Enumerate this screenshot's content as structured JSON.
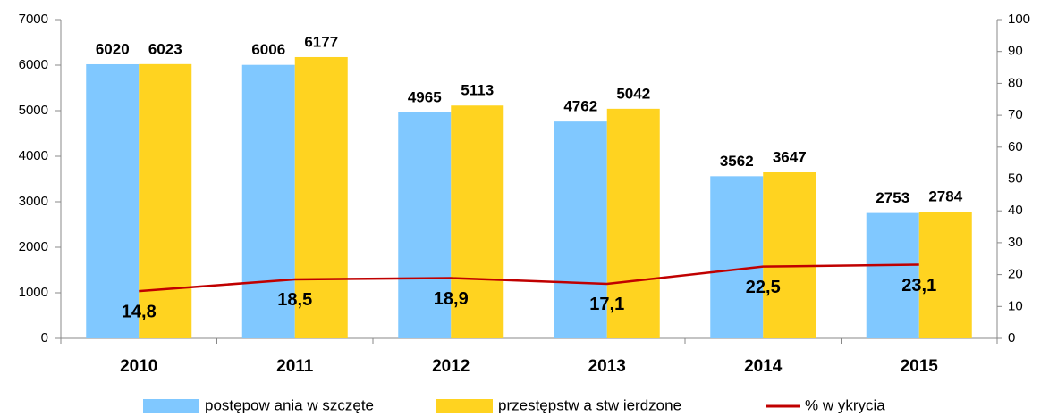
{
  "chart_data": {
    "type": "bar",
    "categories": [
      "2010",
      "2011",
      "2012",
      "2013",
      "2014",
      "2015"
    ],
    "series": [
      {
        "name": "postępow ania w szczęte",
        "color": "#80c8ff",
        "values": [
          6020,
          6006,
          4965,
          4762,
          3562,
          2753
        ]
      },
      {
        "name": "przestępstw a stw ierdzone",
        "color": "#ffd320",
        "values": [
          6023,
          6177,
          5113,
          5042,
          3647,
          2784
        ]
      },
      {
        "name": "% w ykrycia",
        "type": "line",
        "axis": "y2",
        "color": "#c00000",
        "values": [
          14.8,
          18.5,
          18.9,
          17.1,
          22.5,
          23.1
        ],
        "value_labels": [
          "14,8",
          "18,5",
          "18,9",
          "17,1",
          "22,5",
          "23,1"
        ]
      }
    ],
    "ylim": [
      0,
      7000
    ],
    "yticks": [
      0,
      1000,
      2000,
      3000,
      4000,
      5000,
      6000,
      7000
    ],
    "y2lim": [
      0,
      100
    ],
    "y2ticks": [
      0,
      10,
      20,
      30,
      40,
      50,
      60,
      70,
      80,
      90,
      100
    ],
    "legend": "bottom"
  }
}
